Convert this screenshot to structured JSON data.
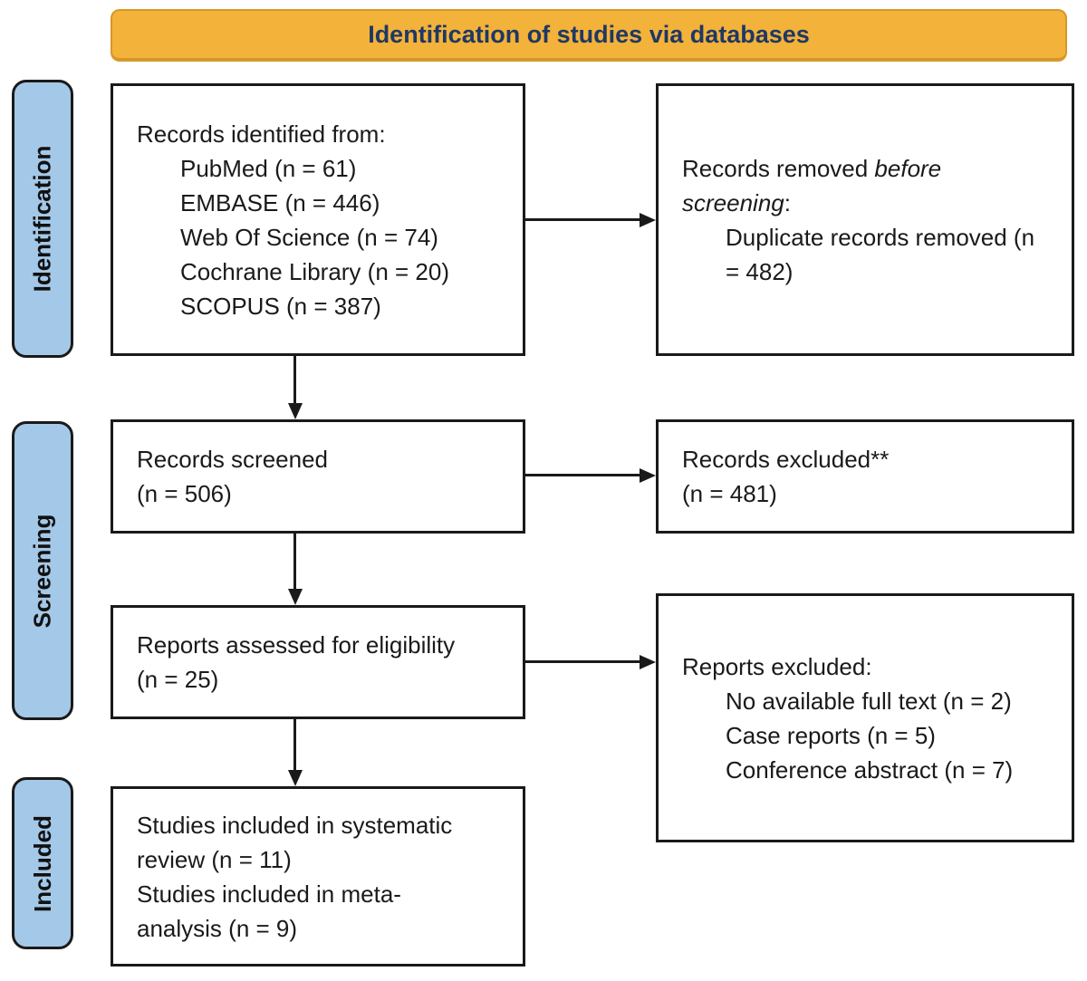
{
  "banner": {
    "label": "Identification of studies via databases"
  },
  "sidebar": {
    "items": [
      {
        "id": "identification",
        "label": "Identification"
      },
      {
        "id": "screening",
        "label": "Screening"
      },
      {
        "id": "included",
        "label": "Included"
      }
    ]
  },
  "boxes": [
    {
      "id": "records-identified",
      "lines": [
        {
          "indent": 0,
          "segments": [
            {
              "text": "Records identified from:"
            }
          ]
        },
        {
          "indent": 1,
          "segments": [
            {
              "text": "PubMed (n = 61)"
            }
          ]
        },
        {
          "indent": 1,
          "segments": [
            {
              "text": "EMBASE (n = 446)"
            }
          ]
        },
        {
          "indent": 1,
          "segments": [
            {
              "text": "Web Of Science (n = 74)"
            }
          ]
        },
        {
          "indent": 1,
          "segments": [
            {
              "text": "Cochrane Library (n = 20)"
            }
          ]
        },
        {
          "indent": 1,
          "segments": [
            {
              "text": "SCOPUS (n = 387)"
            }
          ]
        }
      ]
    },
    {
      "id": "records-removed",
      "lines": [
        {
          "indent": 0,
          "segments": [
            {
              "text": "Records removed "
            },
            {
              "text": "before",
              "italic": true
            }
          ]
        },
        {
          "indent": 0,
          "segments": [
            {
              "text": "screening",
              "italic": true
            },
            {
              "text": ":"
            }
          ]
        },
        {
          "indent": 1,
          "segments": [
            {
              "text": "Duplicate records removed (n"
            }
          ]
        },
        {
          "indent": 1,
          "segments": [
            {
              "text": "= 482)"
            }
          ]
        }
      ]
    },
    {
      "id": "records-screened",
      "lines": [
        {
          "indent": 0,
          "segments": [
            {
              "text": "Records screened"
            }
          ]
        },
        {
          "indent": 0,
          "segments": [
            {
              "text": "(n = 506)"
            }
          ]
        }
      ]
    },
    {
      "id": "records-excluded",
      "lines": [
        {
          "indent": 0,
          "segments": [
            {
              "text": "Records excluded**"
            }
          ]
        },
        {
          "indent": 0,
          "segments": [
            {
              "text": "(n = 481)"
            }
          ]
        }
      ]
    },
    {
      "id": "reports-assessed",
      "lines": [
        {
          "indent": 0,
          "segments": [
            {
              "text": "Reports assessed for eligibility"
            }
          ]
        },
        {
          "indent": 0,
          "segments": [
            {
              "text": "(n = 25)"
            }
          ]
        }
      ]
    },
    {
      "id": "reports-excluded",
      "lines": [
        {
          "indent": 0,
          "segments": [
            {
              "text": "Reports excluded:"
            }
          ]
        },
        {
          "indent": 1,
          "segments": [
            {
              "text": "No available full text (n = 2)"
            }
          ]
        },
        {
          "indent": 1,
          "segments": [
            {
              "text": "Case reports (n = 5)"
            }
          ]
        },
        {
          "indent": 1,
          "segments": [
            {
              "text": "Conference abstract (n = 7)"
            }
          ]
        }
      ]
    },
    {
      "id": "studies-included",
      "lines": [
        {
          "indent": 0,
          "segments": [
            {
              "text": "Studies included in systematic"
            }
          ]
        },
        {
          "indent": 0,
          "segments": [
            {
              "text": "review (n = 11)"
            }
          ]
        },
        {
          "indent": 0,
          "segments": [
            {
              "text": "Studies included in meta-"
            }
          ]
        },
        {
          "indent": 0,
          "segments": [
            {
              "text": "analysis (n = 9)"
            }
          ]
        }
      ]
    }
  ],
  "colors": {
    "banner_fill": "#F3B23A",
    "banner_border": "#D69729",
    "banner_text": "#1F3864",
    "stage_fill": "#A4C8E8",
    "box_border": "#1A1A1A",
    "arrow": "#1A1A1A",
    "text": "#1A1A1A"
  }
}
